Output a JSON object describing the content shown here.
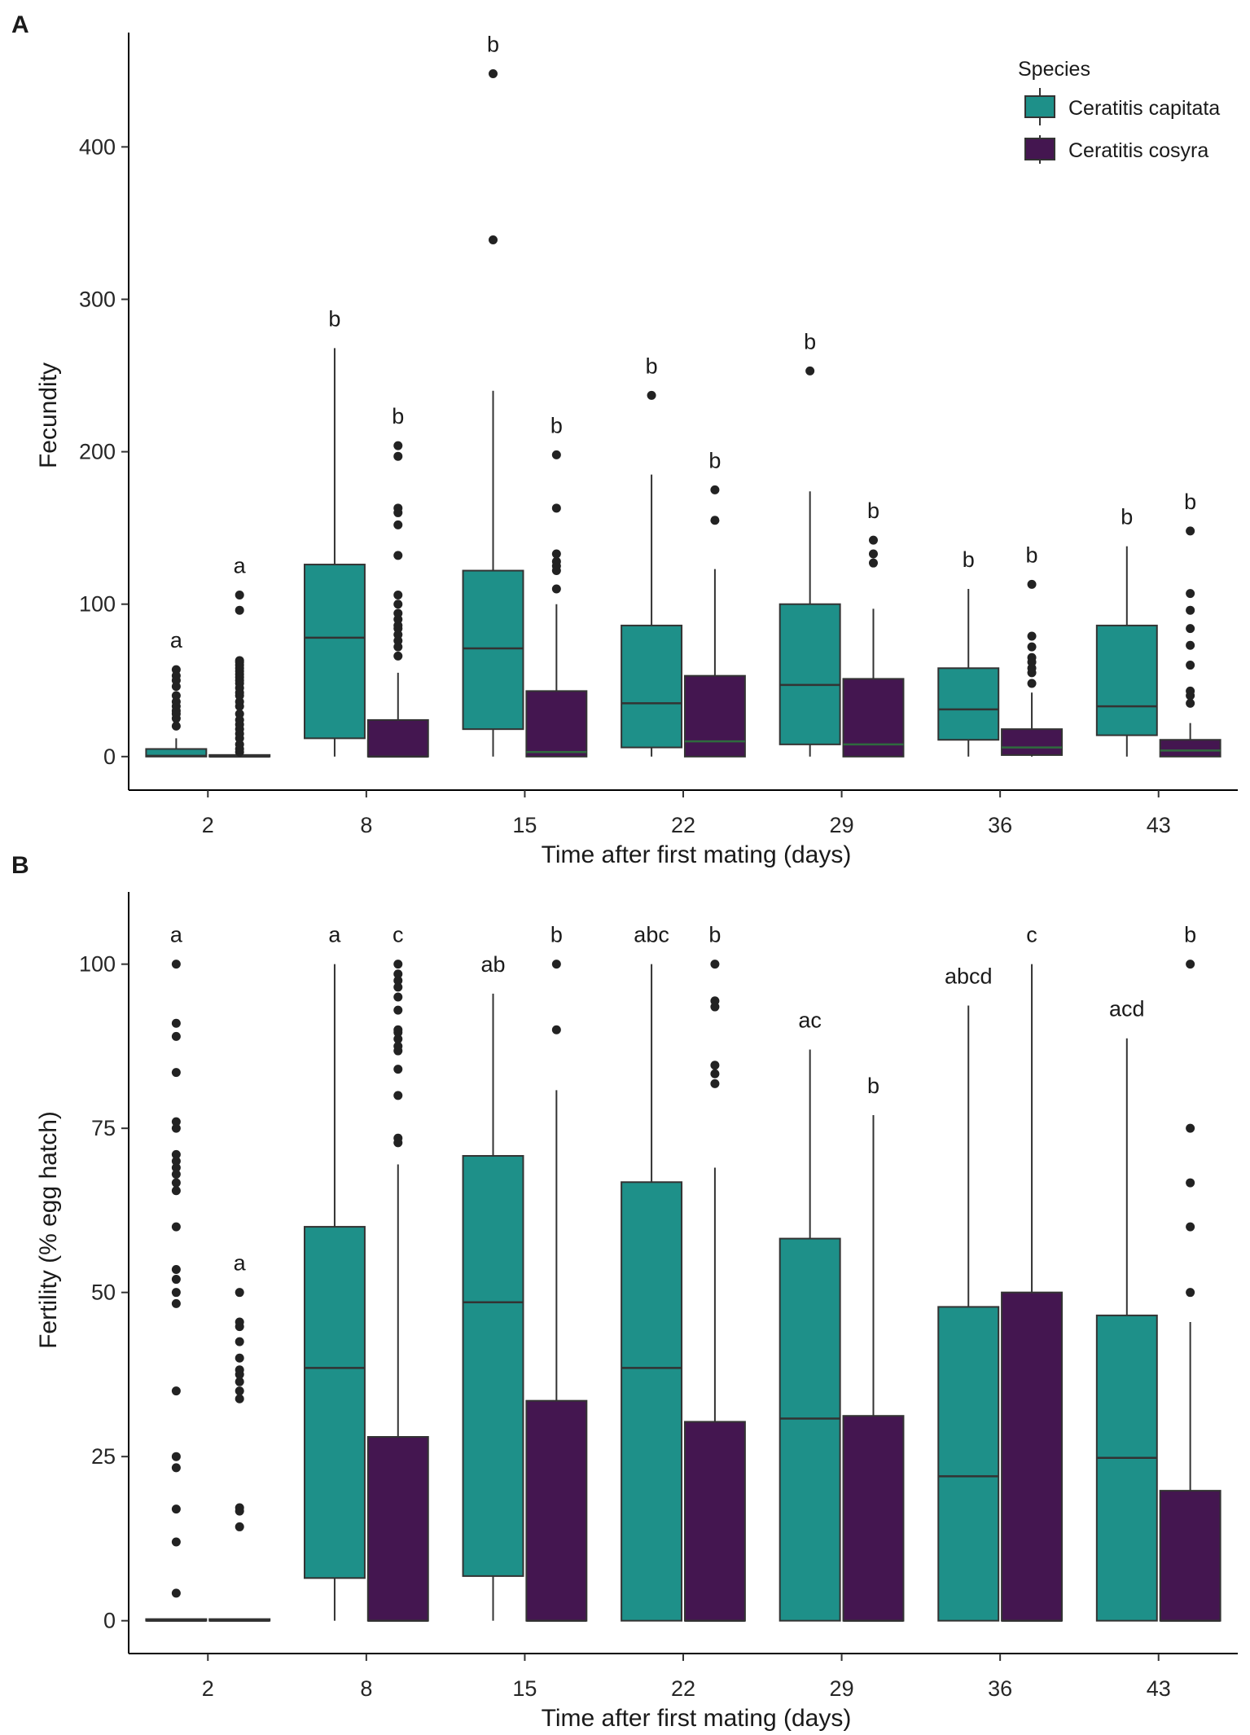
{
  "species": [
    {
      "name": "Ceratitis capitata",
      "color": "#1e9089"
    },
    {
      "name": "Ceratitis cosyra",
      "color": "#441650"
    }
  ],
  "legend": {
    "title": "Species"
  },
  "chart_data": [
    {
      "panel_label": "A",
      "type": "box",
      "xlabel": "Time after first mating (days)",
      "ylabel": "Fecundity",
      "categories": [
        "2",
        "8",
        "15",
        "22",
        "29",
        "36",
        "43"
      ],
      "ylim": [
        -22,
        475
      ],
      "yticks": [
        0,
        100,
        200,
        300,
        400
      ],
      "series": [
        {
          "name": "Ceratitis capitata",
          "boxes": [
            {
              "min": 0,
              "q1": 0,
              "median": 0.5,
              "q3": 5,
              "max": 12,
              "outliers": [
                20,
                25,
                28,
                30,
                33,
                36,
                40,
                46,
                50,
                53,
                57
              ],
              "label": "a"
            },
            {
              "min": 0,
              "q1": 12,
              "median": 78,
              "q3": 126,
              "max": 268,
              "outliers": [],
              "label": "b"
            },
            {
              "min": 0,
              "q1": 18,
              "median": 71,
              "q3": 122,
              "max": 240,
              "outliers": [
                339,
                448
              ],
              "label": "b"
            },
            {
              "min": 0,
              "q1": 6,
              "median": 35,
              "q3": 86,
              "max": 185,
              "outliers": [
                237
              ],
              "label": "b"
            },
            {
              "min": 0,
              "q1": 8,
              "median": 47,
              "q3": 100,
              "max": 174,
              "outliers": [
                253
              ],
              "label": "b"
            },
            {
              "min": 0,
              "q1": 11,
              "median": 31,
              "q3": 58,
              "max": 110,
              "outliers": [],
              "label": "b"
            },
            {
              "min": 0,
              "q1": 14,
              "median": 33,
              "q3": 86,
              "max": 138,
              "outliers": [],
              "label": "b"
            }
          ]
        },
        {
          "name": "Ceratitis cosyra",
          "boxes": [
            {
              "min": 0,
              "q1": 0,
              "median": 0,
              "q3": 0.5,
              "max": 1,
              "outliers": [
                3,
                5,
                8,
                12,
                15,
                18,
                21,
                24,
                28,
                33,
                36,
                40,
                42,
                45,
                48,
                50,
                52,
                54,
                56,
                58,
                60,
                62,
                63,
                96,
                106
              ],
              "label": "a"
            },
            {
              "min": 0,
              "q1": 0,
              "median": 0,
              "q3": 24,
              "max": 55,
              "outliers": [
                66,
                72,
                76,
                80,
                84,
                86,
                90,
                94,
                100,
                106,
                132,
                152,
                160,
                163,
                197,
                204
              ],
              "label": "b"
            },
            {
              "min": 0,
              "q1": 0,
              "median": 3,
              "q3": 43,
              "max": 100,
              "outliers": [
                110,
                122,
                125,
                128,
                133,
                163,
                198
              ],
              "label": "b"
            },
            {
              "min": 0,
              "q1": 0,
              "median": 10,
              "q3": 53,
              "max": 123,
              "outliers": [
                155,
                175
              ],
              "label": "b"
            },
            {
              "min": 0,
              "q1": 0,
              "median": 8,
              "q3": 51,
              "max": 97,
              "outliers": [
                127,
                133,
                142
              ],
              "label": "b"
            },
            {
              "min": 0,
              "q1": 1,
              "median": 6,
              "q3": 18,
              "max": 42,
              "outliers": [
                48,
                55,
                58,
                62,
                65,
                72,
                79,
                113
              ],
              "label": "b"
            },
            {
              "min": 0,
              "q1": 0,
              "median": 4,
              "q3": 11,
              "max": 22,
              "outliers": [
                35,
                40,
                43,
                60,
                73,
                84,
                96,
                107,
                148
              ],
              "label": "b"
            }
          ]
        }
      ]
    },
    {
      "panel_label": "B",
      "type": "box",
      "xlabel": "Time after first mating (days)",
      "ylabel": "Fertility (% egg hatch)",
      "categories": [
        "2",
        "8",
        "15",
        "22",
        "29",
        "36",
        "43"
      ],
      "ylim": [
        -5,
        111
      ],
      "yticks": [
        0,
        25,
        50,
        75,
        100
      ],
      "series": [
        {
          "name": "Ceratitis capitata",
          "boxes": [
            {
              "min": 0,
              "q1": 0,
              "median": 0,
              "q3": 0,
              "max": 0,
              "outliers": [
                4.2,
                12,
                17,
                23.3,
                25,
                35,
                48.3,
                50,
                52,
                53.5,
                60,
                65.5,
                66.7,
                68,
                69,
                70,
                71,
                75,
                76,
                83.5,
                89,
                91,
                100
              ],
              "label": "a"
            },
            {
              "min": 0,
              "q1": 6.5,
              "median": 38.5,
              "q3": 60,
              "max": 100,
              "outliers": [],
              "label": "a"
            },
            {
              "min": 0,
              "q1": 6.8,
              "median": 48.5,
              "q3": 70.8,
              "max": 95.5,
              "outliers": [],
              "label": "ab"
            },
            {
              "min": 0,
              "q1": 0,
              "median": 38.5,
              "q3": 66.8,
              "max": 100,
              "outliers": [],
              "label": "abc"
            },
            {
              "min": 0,
              "q1": 0,
              "median": 30.8,
              "q3": 58.2,
              "max": 87,
              "outliers": [],
              "label": "ac"
            },
            {
              "min": 0,
              "q1": 0,
              "median": 22,
              "q3": 47.8,
              "max": 93.7,
              "outliers": [],
              "label": "abcd"
            },
            {
              "min": 0,
              "q1": 0,
              "median": 24.8,
              "q3": 46.5,
              "max": 88.7,
              "outliers": [],
              "label": "acd"
            }
          ]
        },
        {
          "name": "Ceratitis cosyra",
          "boxes": [
            {
              "min": 0,
              "q1": 0,
              "median": 0,
              "q3": 0,
              "max": 0,
              "outliers": [
                14.3,
                16.7,
                17.2,
                33.8,
                35,
                36.4,
                37.5,
                38.2,
                40,
                42.5,
                44.8,
                45.5,
                50
              ],
              "label": "a"
            },
            {
              "min": 0,
              "q1": 0,
              "median": 0,
              "q3": 28,
              "max": 69.5,
              "outliers": [
                72.8,
                73.5,
                80,
                84,
                86.8,
                87.5,
                88.6,
                89.6,
                90,
                93,
                95,
                96.5,
                97.5,
                98.5,
                100
              ],
              "label": "c"
            },
            {
              "min": 0,
              "q1": 0,
              "median": 0,
              "q3": 33.5,
              "max": 80.8,
              "outliers": [
                90,
                100
              ],
              "label": "b"
            },
            {
              "min": 0,
              "q1": 0,
              "median": 0,
              "q3": 30.3,
              "max": 69,
              "outliers": [
                81.8,
                83.3,
                84.6,
                93.5,
                94.4,
                100
              ],
              "label": "b"
            },
            {
              "min": 0,
              "q1": 0,
              "median": 0,
              "q3": 31.2,
              "max": 77,
              "outliers": [],
              "label": "b"
            },
            {
              "min": 0,
              "q1": 0,
              "median": 0,
              "q3": 50,
              "max": 100,
              "outliers": [],
              "label": "c"
            },
            {
              "min": 0,
              "q1": 0,
              "median": 0,
              "q3": 19.8,
              "max": 45.5,
              "outliers": [
                50,
                60,
                66.7,
                75,
                100
              ],
              "label": "b"
            }
          ]
        }
      ]
    }
  ]
}
